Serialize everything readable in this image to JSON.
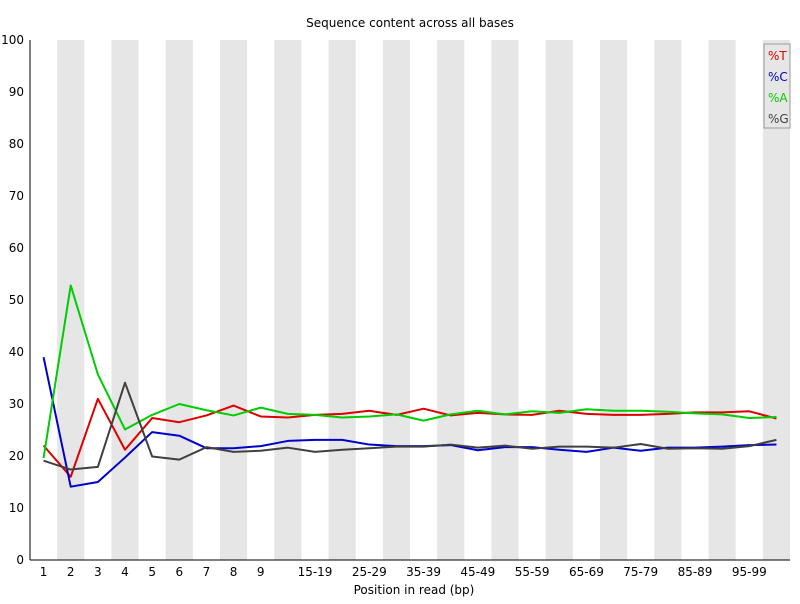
{
  "chart_data": {
    "type": "line",
    "title": "Sequence content across all bases",
    "xlabel": "Position in read (bp)",
    "ylabel": "",
    "ylim": [
      0,
      100
    ],
    "yticks": [
      0,
      10,
      20,
      30,
      40,
      50,
      60,
      70,
      80,
      90,
      100
    ],
    "categories": [
      "1",
      "2",
      "3",
      "4",
      "5",
      "6",
      "7",
      "8",
      "9",
      "10-14",
      "15-19",
      "20-24",
      "25-29",
      "30-34",
      "35-39",
      "40-44",
      "45-49",
      "50-54",
      "55-59",
      "60-64",
      "65-69",
      "70-74",
      "75-79",
      "80-84",
      "85-89",
      "90-94",
      "95-99",
      "100-101"
    ],
    "tick_labels": [
      "1",
      "2",
      "3",
      "4",
      "5",
      "6",
      "7",
      "8",
      "9",
      "",
      "15-19",
      "",
      "25-29",
      "",
      "35-39",
      "",
      "45-49",
      "",
      "55-59",
      "",
      "65-69",
      "",
      "75-79",
      "",
      "85-89",
      "",
      "95-99",
      ""
    ],
    "grid": "alternating vertical bands",
    "legend_position": "top-right",
    "series": [
      {
        "name": "%T",
        "color": "#dd0000",
        "values": [
          22,
          16,
          31,
          21.2,
          27.3,
          26.5,
          27.8,
          29.7,
          27.6,
          27.4,
          27.9,
          28.1,
          28.7,
          27.9,
          29.1,
          27.8,
          28.3,
          28.0,
          27.9,
          28.7,
          28.1,
          27.9,
          27.9,
          28.1,
          28.4,
          28.4,
          28.6,
          27.2
        ]
      },
      {
        "name": "%C",
        "color": "#0000cc",
        "values": [
          39,
          14.1,
          15,
          19.7,
          24.6,
          23.9,
          21.5,
          21.5,
          21.9,
          22.9,
          23.1,
          23.1,
          22.2,
          21.9,
          21.9,
          22.1,
          21.1,
          21.7,
          21.7,
          21.2,
          20.8,
          21.6,
          21.0,
          21.6,
          21.6,
          21.8,
          22.1,
          22.2
        ]
      },
      {
        "name": "%A",
        "color": "#00cc00",
        "values": [
          19.6,
          52.8,
          35.7,
          25.1,
          27.9,
          30.0,
          28.8,
          27.8,
          29.3,
          28.1,
          27.9,
          27.4,
          27.6,
          28.0,
          26.8,
          28.0,
          28.7,
          28.0,
          28.6,
          28.3,
          29.0,
          28.7,
          28.7,
          28.5,
          28.2,
          28.0,
          27.3,
          27.5
        ]
      },
      {
        "name": "%G",
        "color": "#404040",
        "values": [
          19.1,
          17.4,
          17.9,
          34.1,
          19.9,
          19.3,
          21.7,
          20.8,
          21.0,
          21.6,
          20.8,
          21.2,
          21.5,
          21.8,
          21.8,
          22.2,
          21.6,
          22.0,
          21.4,
          21.8,
          21.8,
          21.6,
          22.3,
          21.4,
          21.5,
          21.4,
          21.9,
          23.1
        ]
      }
    ]
  }
}
